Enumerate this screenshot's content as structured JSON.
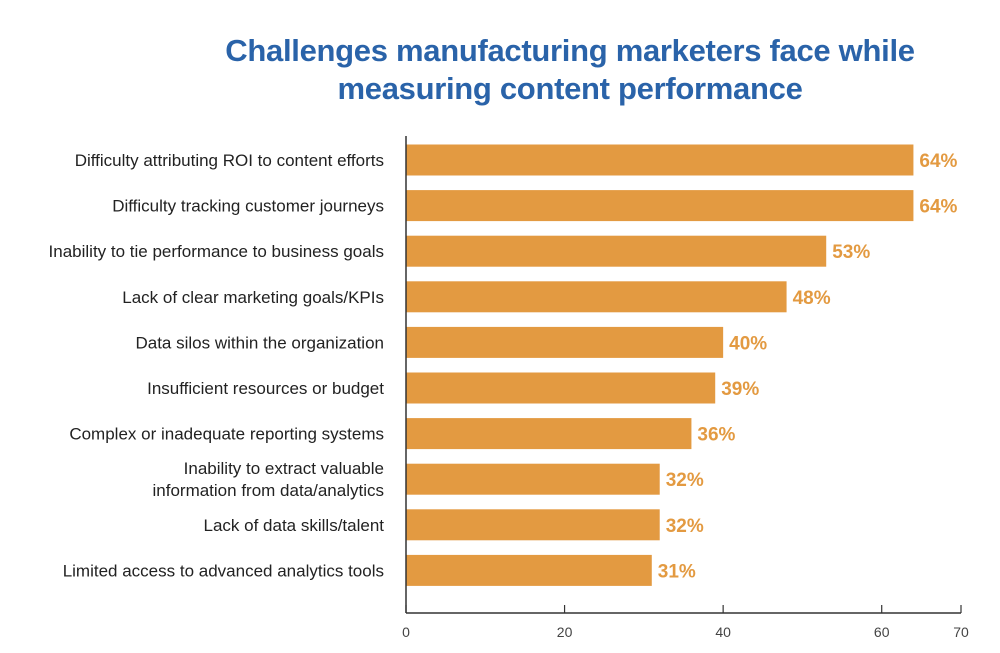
{
  "chart_data": {
    "type": "bar",
    "orientation": "horizontal",
    "title": "Challenges manufacturing marketers face while measuring content performance",
    "title_lines": [
      "Challenges manufacturing marketers face while",
      "measuring content performance"
    ],
    "categories": [
      "Difficulty attributing ROI to content efforts",
      "Difficulty tracking customer journeys",
      "Inability to tie performance to business goals",
      "Lack of clear marketing goals/KPIs",
      "Data silos within the organization",
      "Insufficient resources or budget",
      "Complex or inadequate reporting systems",
      "Inability to extract valuable information from data/analytics",
      "Lack of data skills/talent",
      "Limited access to advanced analytics tools"
    ],
    "category_lines": [
      [
        "Difficulty attributing ROI to content efforts"
      ],
      [
        "Difficulty tracking customer journeys"
      ],
      [
        "Inability to tie performance to business goals"
      ],
      [
        "Lack of clear marketing goals/KPIs"
      ],
      [
        "Data silos within the organization"
      ],
      [
        "Insufficient resources or budget"
      ],
      [
        "Complex or inadequate reporting systems"
      ],
      [
        "Inability to extract valuable",
        "information from data/analytics"
      ],
      [
        "Lack of data skills/talent"
      ],
      [
        "Limited access to advanced analytics tools"
      ]
    ],
    "values": [
      64,
      64,
      53,
      48,
      40,
      39,
      36,
      32,
      32,
      31
    ],
    "value_labels": [
      "64%",
      "64%",
      "53%",
      "48%",
      "40%",
      "39%",
      "36%",
      "32%",
      "32%",
      "31%"
    ],
    "xticks": [
      0,
      20,
      40,
      60,
      70
    ],
    "xlim": [
      0,
      70
    ],
    "xlabel": "",
    "ylabel": "",
    "grid": false,
    "colors": {
      "bar": "#e39a41",
      "value_label": "#e39a41",
      "title": "#2a63a9",
      "axis": "#333333"
    }
  }
}
